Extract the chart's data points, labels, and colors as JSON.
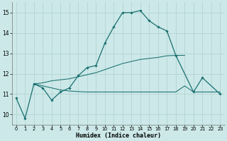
{
  "xlabel": "Humidex (Indice chaleur)",
  "background_color": "#cce8e8",
  "grid_color": "#b0d0d0",
  "line_color": "#1a7070",
  "xlim": [
    -0.5,
    23.5
  ],
  "ylim": [
    9.5,
    15.5
  ],
  "yticks": [
    10,
    11,
    12,
    13,
    14,
    15
  ],
  "xticks": [
    0,
    1,
    2,
    3,
    4,
    5,
    6,
    7,
    8,
    9,
    10,
    11,
    12,
    13,
    14,
    15,
    16,
    17,
    18,
    19,
    20,
    21,
    22,
    23
  ],
  "main_x": [
    0,
    1,
    2,
    3,
    4,
    5,
    6,
    7,
    8,
    9,
    10,
    11,
    12,
    13,
    14,
    15,
    16,
    17,
    18,
    20,
    21,
    23
  ],
  "main_y": [
    10.8,
    9.8,
    11.5,
    11.3,
    10.7,
    11.1,
    11.3,
    11.9,
    12.3,
    12.4,
    13.5,
    14.3,
    15.0,
    15.0,
    15.1,
    14.6,
    14.3,
    14.1,
    12.9,
    11.1,
    11.8,
    11.0
  ],
  "flat_x": [
    2,
    3,
    4,
    5,
    6,
    7,
    8,
    9,
    10,
    11,
    12,
    13,
    14,
    15,
    16,
    17,
    18,
    19,
    20,
    21,
    22,
    23
  ],
  "flat_y": [
    11.5,
    11.4,
    11.3,
    11.2,
    11.15,
    11.12,
    11.1,
    11.1,
    11.1,
    11.1,
    11.1,
    11.1,
    11.1,
    11.1,
    11.1,
    11.1,
    11.1,
    11.4,
    11.1,
    11.1,
    11.1,
    11.1
  ],
  "rising_x": [
    2,
    3,
    4,
    5,
    6,
    7,
    8,
    9,
    10,
    11,
    12,
    13,
    14,
    15,
    16,
    17,
    18,
    19
  ],
  "rising_y": [
    11.5,
    11.55,
    11.65,
    11.7,
    11.75,
    11.85,
    11.95,
    12.05,
    12.2,
    12.35,
    12.5,
    12.6,
    12.7,
    12.75,
    12.8,
    12.88,
    12.9,
    12.9
  ]
}
